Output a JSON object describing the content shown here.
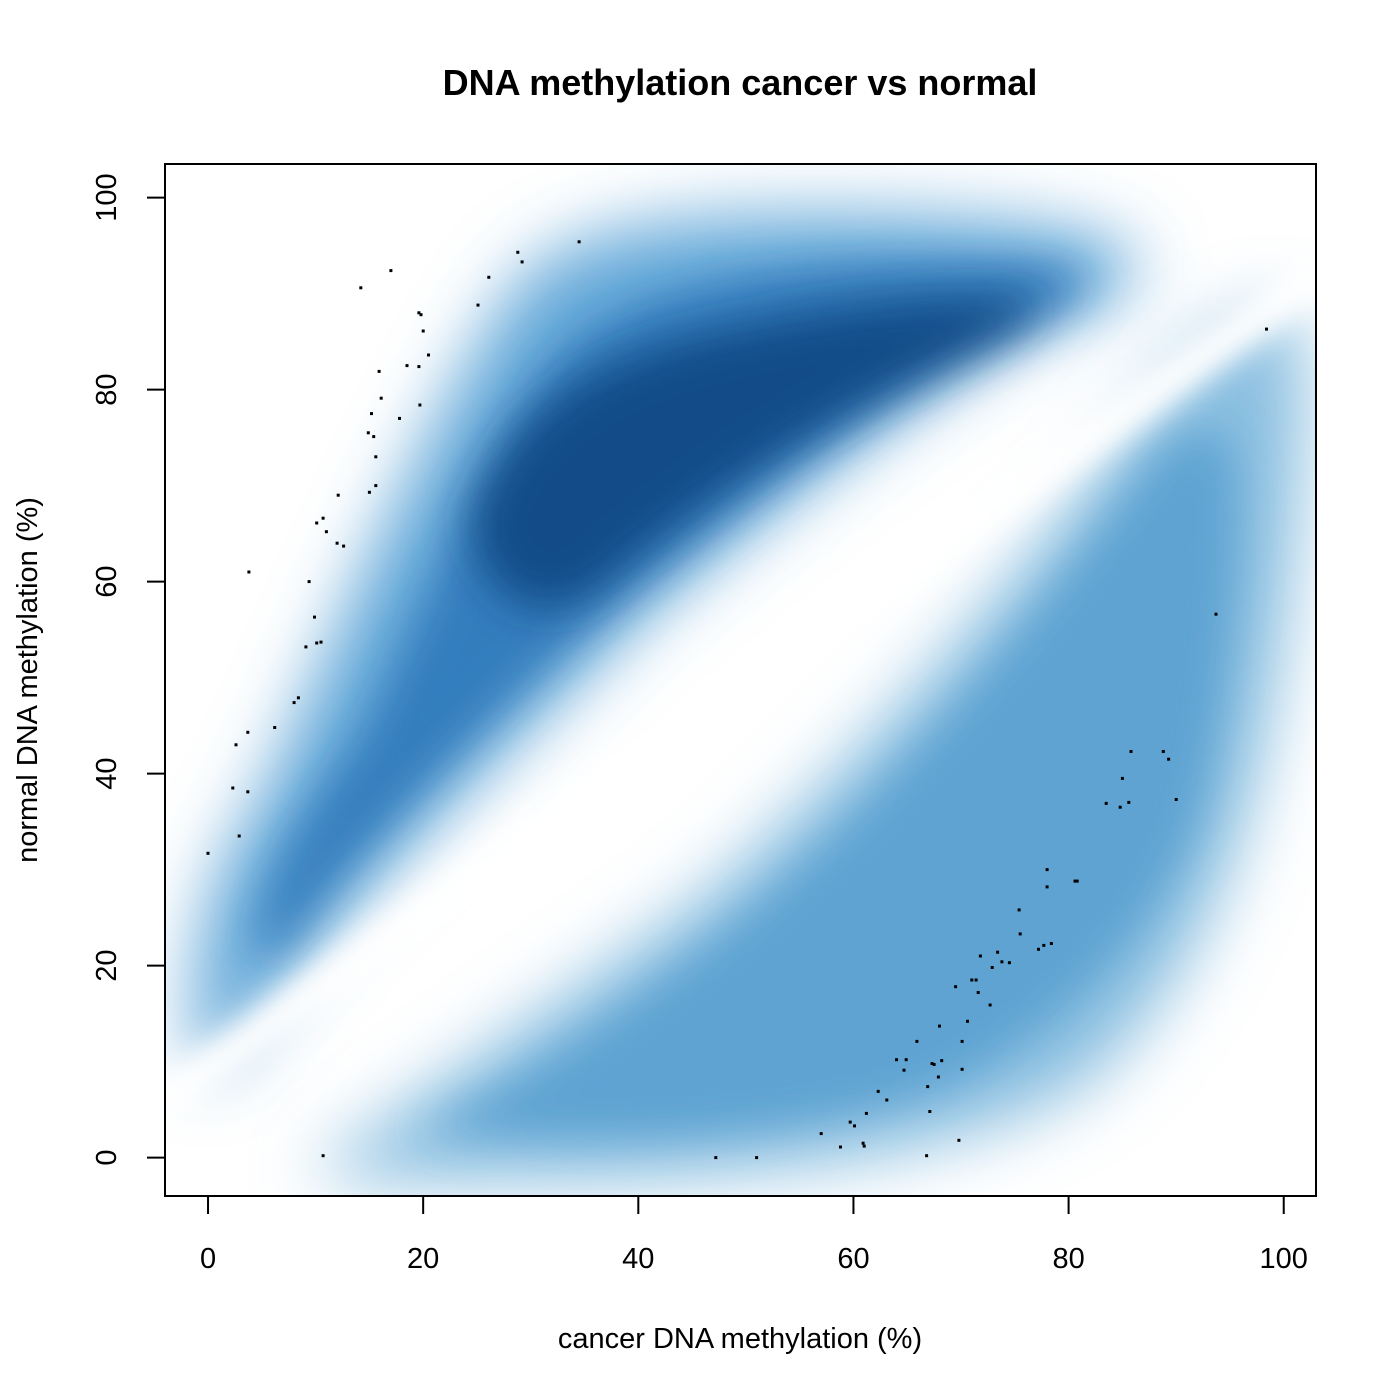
{
  "chart_data": {
    "type": "scatter",
    "title": "DNA methylation cancer vs normal",
    "xlabel": "cancer DNA methylation (%)",
    "ylabel": "normal DNA methylation (%)",
    "xlim": [
      -4,
      103
    ],
    "ylim": [
      -4,
      103.5
    ],
    "xticks": [
      0,
      20,
      40,
      60,
      80,
      100
    ],
    "yticks": [
      0,
      20,
      40,
      60,
      80,
      100
    ],
    "grid": false,
    "legend": "none",
    "density_colors": {
      "low": "#ffffff",
      "mid": "#4a9ad2",
      "high": "#08306b"
    },
    "points": [
      [
        0.0,
        31.7
      ],
      [
        2.3,
        38.5
      ],
      [
        2.6,
        43.0
      ],
      [
        2.9,
        33.5
      ],
      [
        3.7,
        38.1
      ],
      [
        3.7,
        44.3
      ],
      [
        3.8,
        61.0
      ],
      [
        6.2,
        44.8
      ],
      [
        8.0,
        47.4
      ],
      [
        8.4,
        47.9
      ],
      [
        9.1,
        53.2
      ],
      [
        9.4,
        60.0
      ],
      [
        9.9,
        56.3
      ],
      [
        10.1,
        66.1
      ],
      [
        10.1,
        53.6
      ],
      [
        10.5,
        53.7
      ],
      [
        10.7,
        66.6
      ],
      [
        11.0,
        65.2
      ],
      [
        12.0,
        64.0
      ],
      [
        12.1,
        69.0
      ],
      [
        12.6,
        63.7
      ],
      [
        14.2,
        90.6
      ],
      [
        14.9,
        75.5
      ],
      [
        15.0,
        69.3
      ],
      [
        15.2,
        77.5
      ],
      [
        15.4,
        75.1
      ],
      [
        15.6,
        70.0
      ],
      [
        15.6,
        73.0
      ],
      [
        15.9,
        81.9
      ],
      [
        16.1,
        79.1
      ],
      [
        17.0,
        92.4
      ],
      [
        17.8,
        77.0
      ],
      [
        18.5,
        82.5
      ],
      [
        19.6,
        88.0
      ],
      [
        19.6,
        82.4
      ],
      [
        19.7,
        78.4
      ],
      [
        19.8,
        87.8
      ],
      [
        20.0,
        86.1
      ],
      [
        20.5,
        83.6
      ],
      [
        25.1,
        88.8
      ],
      [
        26.1,
        91.7
      ],
      [
        28.8,
        94.3
      ],
      [
        29.2,
        93.3
      ],
      [
        34.5,
        95.4
      ],
      [
        10.7,
        0.2
      ],
      [
        47.2,
        0.0
      ],
      [
        51.0,
        0.0
      ],
      [
        57.0,
        2.5
      ],
      [
        58.8,
        1.1
      ],
      [
        59.7,
        3.7
      ],
      [
        60.1,
        3.3
      ],
      [
        60.9,
        1.5
      ],
      [
        61.0,
        1.2
      ],
      [
        61.2,
        4.6
      ],
      [
        62.3,
        6.9
      ],
      [
        63.1,
        6.0
      ],
      [
        64.0,
        10.2
      ],
      [
        64.7,
        9.1
      ],
      [
        64.9,
        10.2
      ],
      [
        65.9,
        12.1
      ],
      [
        66.8,
        0.2
      ],
      [
        66.9,
        7.4
      ],
      [
        67.1,
        4.8
      ],
      [
        67.3,
        9.8
      ],
      [
        67.5,
        9.7
      ],
      [
        67.9,
        8.4
      ],
      [
        68.0,
        13.7
      ],
      [
        68.2,
        10.1
      ],
      [
        69.5,
        17.8
      ],
      [
        69.8,
        1.8
      ],
      [
        70.1,
        9.2
      ],
      [
        70.1,
        12.1
      ],
      [
        70.6,
        14.2
      ],
      [
        71.0,
        18.5
      ],
      [
        71.4,
        18.5
      ],
      [
        71.6,
        17.2
      ],
      [
        71.8,
        21.0
      ],
      [
        72.7,
        15.9
      ],
      [
        72.9,
        19.8
      ],
      [
        73.4,
        21.4
      ],
      [
        73.8,
        20.4
      ],
      [
        74.5,
        20.3
      ],
      [
        75.4,
        25.8
      ],
      [
        75.5,
        23.3
      ],
      [
        77.2,
        21.7
      ],
      [
        77.7,
        22.1
      ],
      [
        78.0,
        28.2
      ],
      [
        78.0,
        30.0
      ],
      [
        78.4,
        22.3
      ],
      [
        80.6,
        28.8
      ],
      [
        80.8,
        28.8
      ],
      [
        83.5,
        36.9
      ],
      [
        84.8,
        36.5
      ],
      [
        85.0,
        39.5
      ],
      [
        85.6,
        37.0
      ],
      [
        85.8,
        42.3
      ],
      [
        88.8,
        42.3
      ],
      [
        89.3,
        41.5
      ],
      [
        90.0,
        37.3
      ],
      [
        93.7,
        56.6
      ],
      [
        98.4,
        86.3
      ]
    ]
  }
}
